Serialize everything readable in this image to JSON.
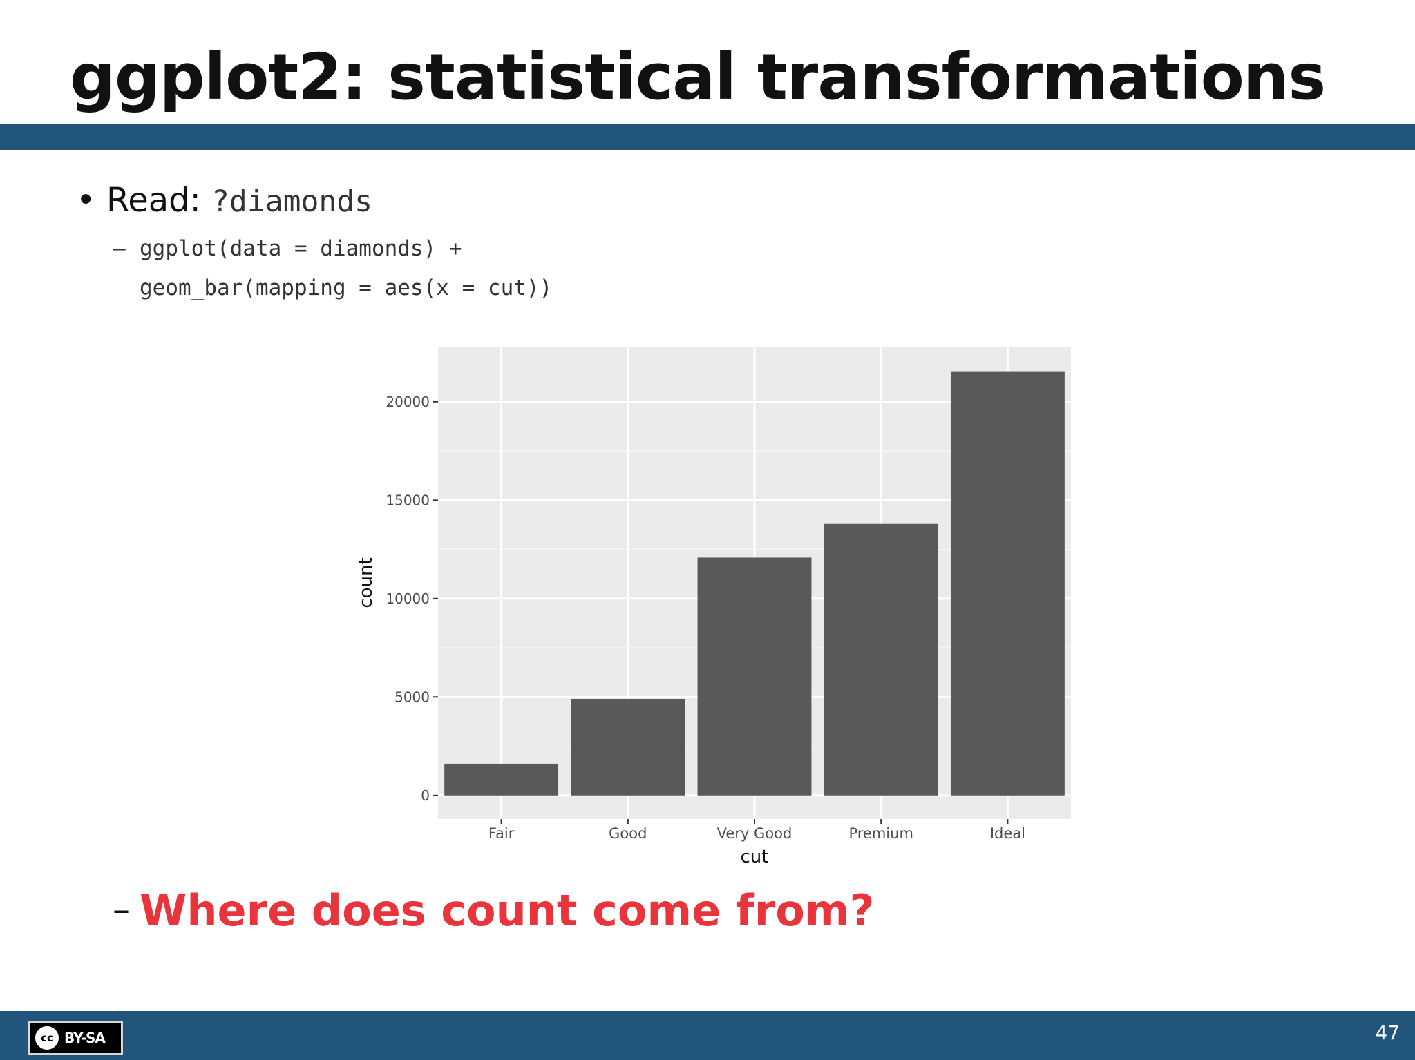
{
  "slide": {
    "title": "ggplot2: statistical transformations",
    "bullet_label": "Read:",
    "bullet_code": "?diamonds",
    "sub_dash": "–",
    "code_line_1": "ggplot(data = diamonds) +",
    "code_line_2": "geom_bar(mapping = aes(x = cut))",
    "question_dash": "–",
    "question": "Where does count come from?",
    "page_number": "47"
  },
  "license": {
    "cc_mark": "cc",
    "label": "BY-SA",
    "icon": "creative-commons-icon"
  },
  "colors": {
    "title_bar": "#22557b",
    "question_text": "#e8343a",
    "panel_bg": "#ebebeb",
    "bar_fill": "#595959"
  },
  "chart_data": {
    "type": "bar",
    "categories": [
      "Fair",
      "Good",
      "Very Good",
      "Premium",
      "Ideal"
    ],
    "values": [
      1610,
      4906,
      12082,
      13791,
      21551
    ],
    "xlabel": "cut",
    "ylabel": "count",
    "ylim": [
      -1200,
      22800
    ],
    "yticks": [
      0,
      5000,
      10000,
      15000,
      20000
    ],
    "ytick_labels": [
      "0",
      "5000",
      "10000",
      "15000",
      "20000"
    ],
    "grid": true,
    "legend": "none"
  }
}
